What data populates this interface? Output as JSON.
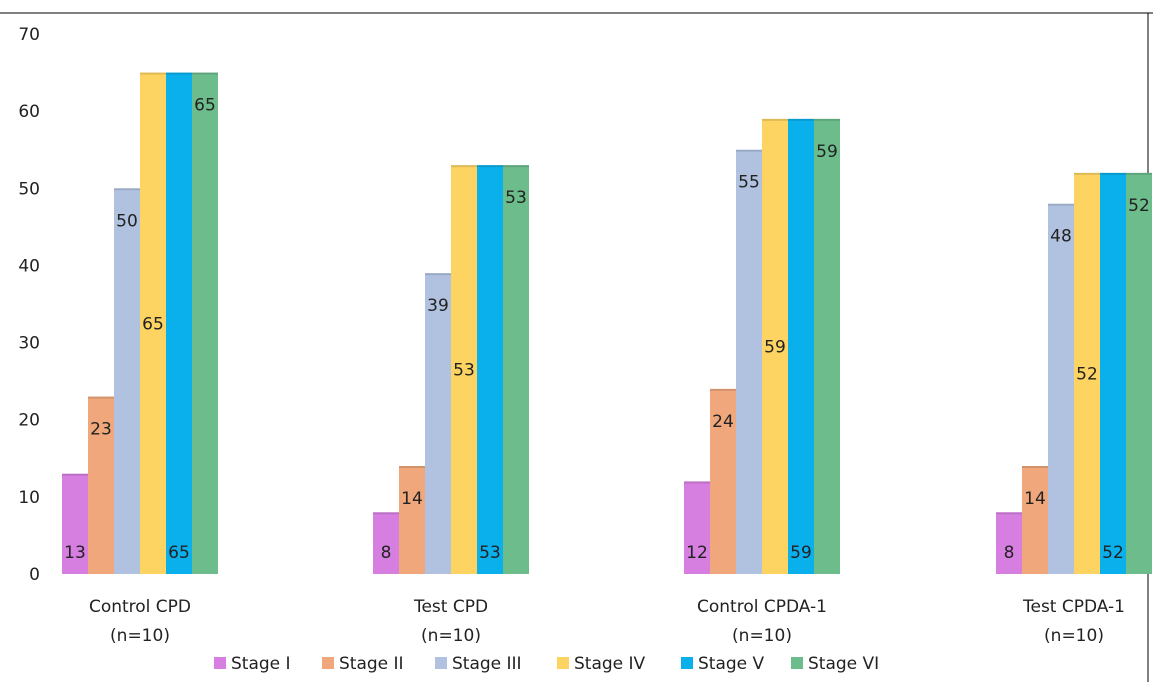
{
  "chart_data": {
    "type": "bar",
    "title": "",
    "xlabel": "",
    "ylabel": "",
    "ylim": [
      0,
      70
    ],
    "y_ticks": [
      "0",
      "10",
      "20",
      "30",
      "40",
      "50",
      "60",
      "70"
    ],
    "grid": false,
    "legend_position": "bottom",
    "categories": [
      [
        "Control CPD",
        "(n=10)"
      ],
      [
        "Test CPD",
        "(n=10)"
      ],
      [
        "Control CPDA-1",
        "(n=10)"
      ],
      [
        "Test CPDA-1",
        "(n=10)"
      ]
    ],
    "series": [
      {
        "name": "Stage I",
        "color": "#d67fe0",
        "values": [
          13,
          8,
          12,
          8
        ],
        "label_placement": "base"
      },
      {
        "name": "Stage II",
        "color": "#f0a77c",
        "values": [
          23,
          14,
          24,
          14
        ],
        "label_placement": "inside-top"
      },
      {
        "name": "Stage III",
        "color": "#b0c2e0",
        "values": [
          50,
          39,
          55,
          48
        ],
        "label_placement": "inside-top"
      },
      {
        "name": "Stage IV",
        "color": "#fdd462",
        "values": [
          65,
          53,
          59,
          52
        ],
        "label_placement": "middle"
      },
      {
        "name": "Stage V",
        "color": "#0ab0ec",
        "values": [
          65,
          53,
          59,
          52
        ],
        "label_placement": "base"
      },
      {
        "name": "Stage VI",
        "color": "#6dbc8c",
        "values": [
          65,
          53,
          59,
          52
        ],
        "label_placement": "inside-top"
      }
    ]
  }
}
